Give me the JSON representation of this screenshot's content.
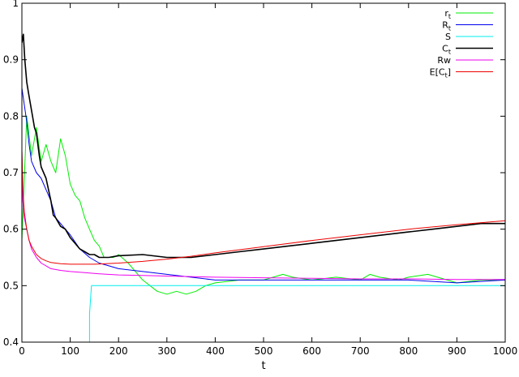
{
  "chart_data": {
    "type": "line",
    "title": "",
    "xlabel": "t",
    "ylabel": "",
    "xlim": [
      0,
      1000
    ],
    "ylim": [
      0.4,
      1.0
    ],
    "x_ticks": [
      0,
      100,
      200,
      300,
      400,
      500,
      600,
      700,
      800,
      900,
      1000
    ],
    "y_ticks": [
      0.4,
      0.5,
      0.6,
      0.7,
      0.8,
      0.9,
      1.0
    ],
    "y_tick_labels": [
      "0.4",
      "0.5",
      "0.6",
      "0.7",
      "0.8",
      "0.9",
      "1"
    ],
    "grid": false,
    "legend_position": "top-right",
    "series": [
      {
        "name": "r",
        "name_sub": "t",
        "color": "#00ee00",
        "x": [
          0,
          10,
          20,
          30,
          40,
          50,
          60,
          70,
          80,
          90,
          100,
          110,
          120,
          130,
          140,
          150,
          160,
          170,
          180,
          190,
          200,
          220,
          250,
          280,
          300,
          320,
          340,
          360,
          380,
          400,
          450,
          500,
          540,
          560,
          600,
          650,
          700,
          720,
          740,
          780,
          800,
          840,
          860,
          900,
          950,
          1000
        ],
        "y": [
          0.58,
          0.8,
          0.73,
          0.78,
          0.72,
          0.75,
          0.72,
          0.7,
          0.76,
          0.73,
          0.68,
          0.66,
          0.65,
          0.62,
          0.6,
          0.58,
          0.57,
          0.55,
          0.55,
          0.55,
          0.555,
          0.54,
          0.51,
          0.49,
          0.485,
          0.49,
          0.485,
          0.49,
          0.5,
          0.505,
          0.51,
          0.51,
          0.52,
          0.515,
          0.51,
          0.515,
          0.51,
          0.52,
          0.515,
          0.51,
          0.515,
          0.52,
          0.515,
          0.505,
          0.51,
          0.51
        ]
      },
      {
        "name": "R",
        "name_sub": "t",
        "color": "#0000ee",
        "x": [
          0,
          5,
          10,
          15,
          20,
          30,
          40,
          50,
          60,
          70,
          80,
          90,
          100,
          120,
          140,
          160,
          180,
          200,
          250,
          300,
          350,
          400,
          500,
          600,
          700,
          800,
          900,
          1000
        ],
        "y": [
          0.85,
          0.82,
          0.79,
          0.75,
          0.72,
          0.7,
          0.69,
          0.67,
          0.65,
          0.62,
          0.61,
          0.6,
          0.59,
          0.565,
          0.55,
          0.54,
          0.535,
          0.53,
          0.525,
          0.52,
          0.515,
          0.51,
          0.51,
          0.51,
          0.51,
          0.51,
          0.505,
          0.51
        ]
      },
      {
        "name": "S",
        "name_sub": "",
        "color": "#00eeee",
        "x": [
          140,
          140,
          144,
          1000
        ],
        "y": [
          0.4,
          0.45,
          0.5,
          0.5
        ]
      },
      {
        "name": "C",
        "name_sub": "t",
        "color": "#000000",
        "x": [
          0,
          3,
          6,
          10,
          14,
          18,
          22,
          26,
          30,
          36,
          40,
          45,
          50,
          55,
          60,
          65,
          70,
          80,
          90,
          100,
          110,
          120,
          130,
          140,
          150,
          160,
          180,
          200,
          250,
          300,
          350,
          400,
          450,
          500,
          550,
          600,
          650,
          700,
          750,
          800,
          850,
          900,
          950,
          1000
        ],
        "y": [
          0.93,
          0.945,
          0.9,
          0.86,
          0.84,
          0.82,
          0.8,
          0.78,
          0.77,
          0.73,
          0.71,
          0.7,
          0.69,
          0.67,
          0.65,
          0.625,
          0.62,
          0.605,
          0.6,
          0.585,
          0.575,
          0.565,
          0.56,
          0.555,
          0.555,
          0.55,
          0.55,
          0.553,
          0.555,
          0.55,
          0.55,
          0.555,
          0.56,
          0.565,
          0.57,
          0.575,
          0.58,
          0.585,
          0.59,
          0.595,
          0.6,
          0.605,
          0.61,
          0.61
        ]
      },
      {
        "name": "Rw",
        "name_sub": "",
        "color": "#ee00ee",
        "x": [
          0,
          2,
          5,
          10,
          15,
          20,
          30,
          40,
          50,
          60,
          80,
          100,
          130,
          160,
          200,
          250,
          300,
          400,
          500,
          600,
          700,
          800,
          900,
          1000
        ],
        "y": [
          0.74,
          0.65,
          0.62,
          0.6,
          0.58,
          0.565,
          0.55,
          0.54,
          0.535,
          0.53,
          0.527,
          0.525,
          0.523,
          0.521,
          0.519,
          0.518,
          0.517,
          0.515,
          0.514,
          0.513,
          0.512,
          0.512,
          0.511,
          0.511
        ]
      },
      {
        "name": "E[C",
        "name_sub": "t",
        "name_suffix": "]",
        "color": "#ee0000",
        "x": [
          0,
          2,
          5,
          10,
          15,
          20,
          30,
          40,
          50,
          60,
          80,
          100,
          150,
          200,
          250,
          300,
          350,
          400,
          500,
          600,
          700,
          800,
          900,
          1000
        ],
        "y": [
          0.74,
          0.67,
          0.63,
          0.6,
          0.58,
          0.57,
          0.555,
          0.548,
          0.544,
          0.541,
          0.539,
          0.538,
          0.538,
          0.54,
          0.543,
          0.547,
          0.552,
          0.558,
          0.569,
          0.58,
          0.59,
          0.6,
          0.608,
          0.615
        ]
      }
    ]
  }
}
